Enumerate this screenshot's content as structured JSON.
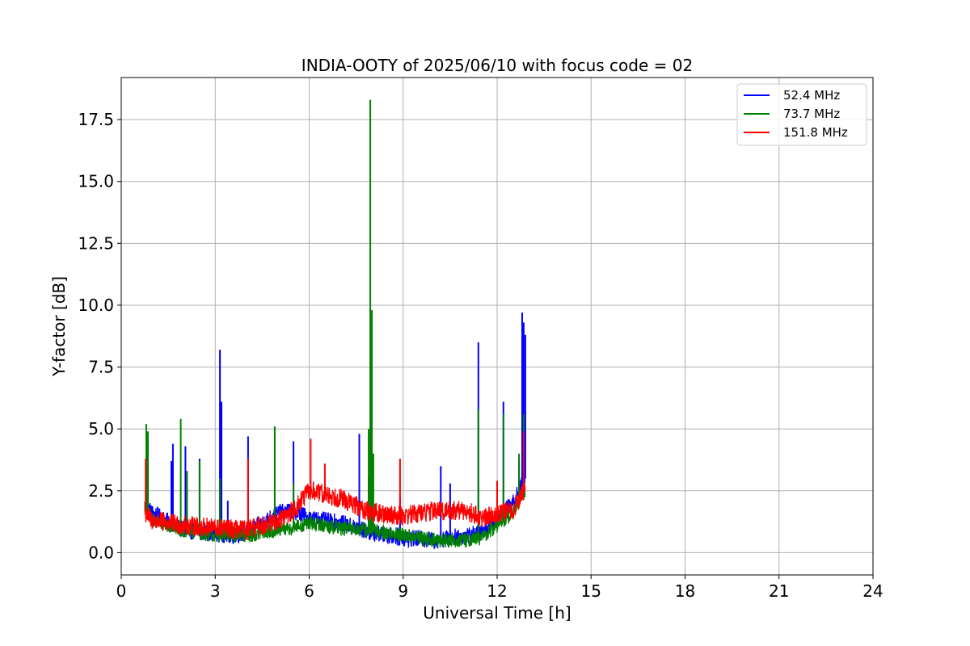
{
  "chart_data": {
    "type": "line",
    "title": "INDIA-OOTY of 2025/06/10 with focus code = 02",
    "xlabel": "Universal Time [h]",
    "ylabel": "Y-factor [dB]",
    "xlim": [
      0,
      24
    ],
    "ylim": [
      -0.9,
      19.2
    ],
    "x_ticks": [
      0,
      3,
      6,
      9,
      12,
      15,
      18,
      21,
      24
    ],
    "x_tick_labels": [
      "0",
      "3",
      "6",
      "9",
      "12",
      "15",
      "18",
      "21",
      "24"
    ],
    "y_ticks": [
      0.0,
      2.5,
      5.0,
      7.5,
      10.0,
      12.5,
      15.0,
      17.5
    ],
    "y_tick_labels": [
      "0.0",
      "2.5",
      "5.0",
      "7.5",
      "10.0",
      "12.5",
      "15.0",
      "17.5"
    ],
    "grid": true,
    "legend_position": "top-right",
    "series": [
      {
        "name": "52.4 MHz",
        "color": "#0000ff",
        "baseline": [
          [
            0.75,
            1.9
          ],
          [
            1.0,
            1.6
          ],
          [
            2.0,
            0.9
          ],
          [
            3.0,
            0.8
          ],
          [
            3.5,
            0.7
          ],
          [
            4.0,
            0.8
          ],
          [
            5.0,
            1.6
          ],
          [
            5.5,
            1.7
          ],
          [
            6.0,
            1.4
          ],
          [
            7.0,
            1.2
          ],
          [
            8.0,
            0.8
          ],
          [
            9.0,
            0.6
          ],
          [
            10.0,
            0.5
          ],
          [
            11.0,
            0.7
          ],
          [
            11.5,
            0.8
          ],
          [
            12.0,
            1.4
          ],
          [
            12.5,
            2.0
          ],
          [
            12.9,
            3.0
          ]
        ],
        "noise": 0.35,
        "spikes": [
          [
            0.85,
            4.8
          ],
          [
            1.6,
            3.7
          ],
          [
            1.65,
            4.4
          ],
          [
            2.05,
            4.3
          ],
          [
            2.5,
            3.8
          ],
          [
            3.15,
            8.2
          ],
          [
            3.2,
            6.1
          ],
          [
            3.4,
            2.1
          ],
          [
            4.05,
            4.7
          ],
          [
            5.5,
            4.5
          ],
          [
            7.6,
            4.8
          ],
          [
            7.9,
            3.1
          ],
          [
            8.0,
            3.7
          ],
          [
            8.9,
            2.2
          ],
          [
            10.2,
            3.5
          ],
          [
            10.5,
            2.8
          ],
          [
            11.4,
            8.5
          ],
          [
            12.2,
            6.1
          ],
          [
            12.7,
            3.7
          ],
          [
            12.8,
            9.7
          ],
          [
            12.85,
            9.3
          ],
          [
            12.9,
            8.8
          ]
        ]
      },
      {
        "name": "73.7 MHz",
        "color": "#008000",
        "baseline": [
          [
            0.75,
            1.9
          ],
          [
            1.0,
            1.3
          ],
          [
            2.0,
            0.9
          ],
          [
            3.0,
            0.7
          ],
          [
            4.0,
            0.7
          ],
          [
            5.0,
            0.9
          ],
          [
            5.5,
            1.0
          ],
          [
            6.0,
            1.2
          ],
          [
            7.0,
            1.0
          ],
          [
            8.0,
            0.9
          ],
          [
            9.0,
            0.7
          ],
          [
            10.0,
            0.5
          ],
          [
            11.0,
            0.5
          ],
          [
            11.5,
            0.6
          ],
          [
            12.0,
            1.1
          ],
          [
            12.5,
            1.6
          ],
          [
            12.9,
            2.5
          ]
        ],
        "noise": 0.3,
        "spikes": [
          [
            0.8,
            5.2
          ],
          [
            0.85,
            4.9
          ],
          [
            1.9,
            5.4
          ],
          [
            2.1,
            3.3
          ],
          [
            2.5,
            3.7
          ],
          [
            3.15,
            3.0
          ],
          [
            4.9,
            5.1
          ],
          [
            5.5,
            2.8
          ],
          [
            7.9,
            5.0
          ],
          [
            7.95,
            18.3
          ],
          [
            8.0,
            9.8
          ],
          [
            8.05,
            4.0
          ],
          [
            11.4,
            5.8
          ],
          [
            12.2,
            5.6
          ],
          [
            12.7,
            4.0
          ],
          [
            12.85,
            5.6
          ]
        ]
      },
      {
        "name": "151.8 MHz",
        "color": "#ff0000",
        "baseline": [
          [
            0.75,
            1.6
          ],
          [
            1.0,
            1.3
          ],
          [
            2.0,
            1.1
          ],
          [
            3.0,
            1.0
          ],
          [
            4.0,
            0.9
          ],
          [
            5.0,
            1.3
          ],
          [
            5.5,
            1.7
          ],
          [
            6.0,
            2.5
          ],
          [
            7.0,
            2.2
          ],
          [
            8.0,
            1.6
          ],
          [
            9.0,
            1.5
          ],
          [
            10.0,
            1.7
          ],
          [
            11.0,
            1.7
          ],
          [
            11.5,
            1.4
          ],
          [
            12.0,
            1.6
          ],
          [
            12.5,
            1.7
          ],
          [
            12.9,
            2.6
          ]
        ],
        "noise": 0.4,
        "spikes": [
          [
            0.78,
            3.8
          ],
          [
            4.05,
            3.8
          ],
          [
            6.05,
            4.6
          ],
          [
            6.5,
            3.6
          ],
          [
            8.9,
            3.8
          ],
          [
            12.0,
            2.9
          ],
          [
            12.85,
            4.9
          ]
        ]
      }
    ]
  }
}
